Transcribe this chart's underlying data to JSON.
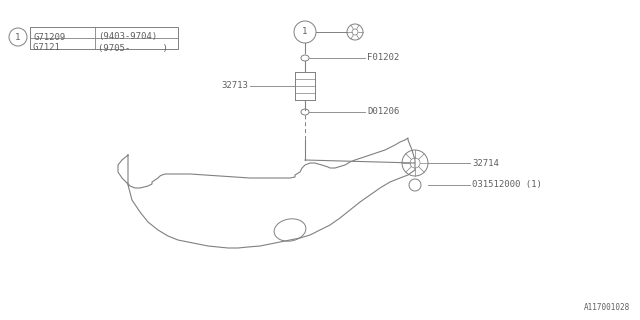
{
  "bg_color": "#ffffff",
  "line_color": "#808080",
  "text_color": "#606060",
  "font_size": 6.5,
  "legend_table": {
    "circle_label": "1",
    "rows": [
      [
        "G71209",
        "(9403-9704)"
      ],
      [
        "G7121 ",
        "(9705-      )"
      ]
    ]
  },
  "watermark": "A117001028"
}
